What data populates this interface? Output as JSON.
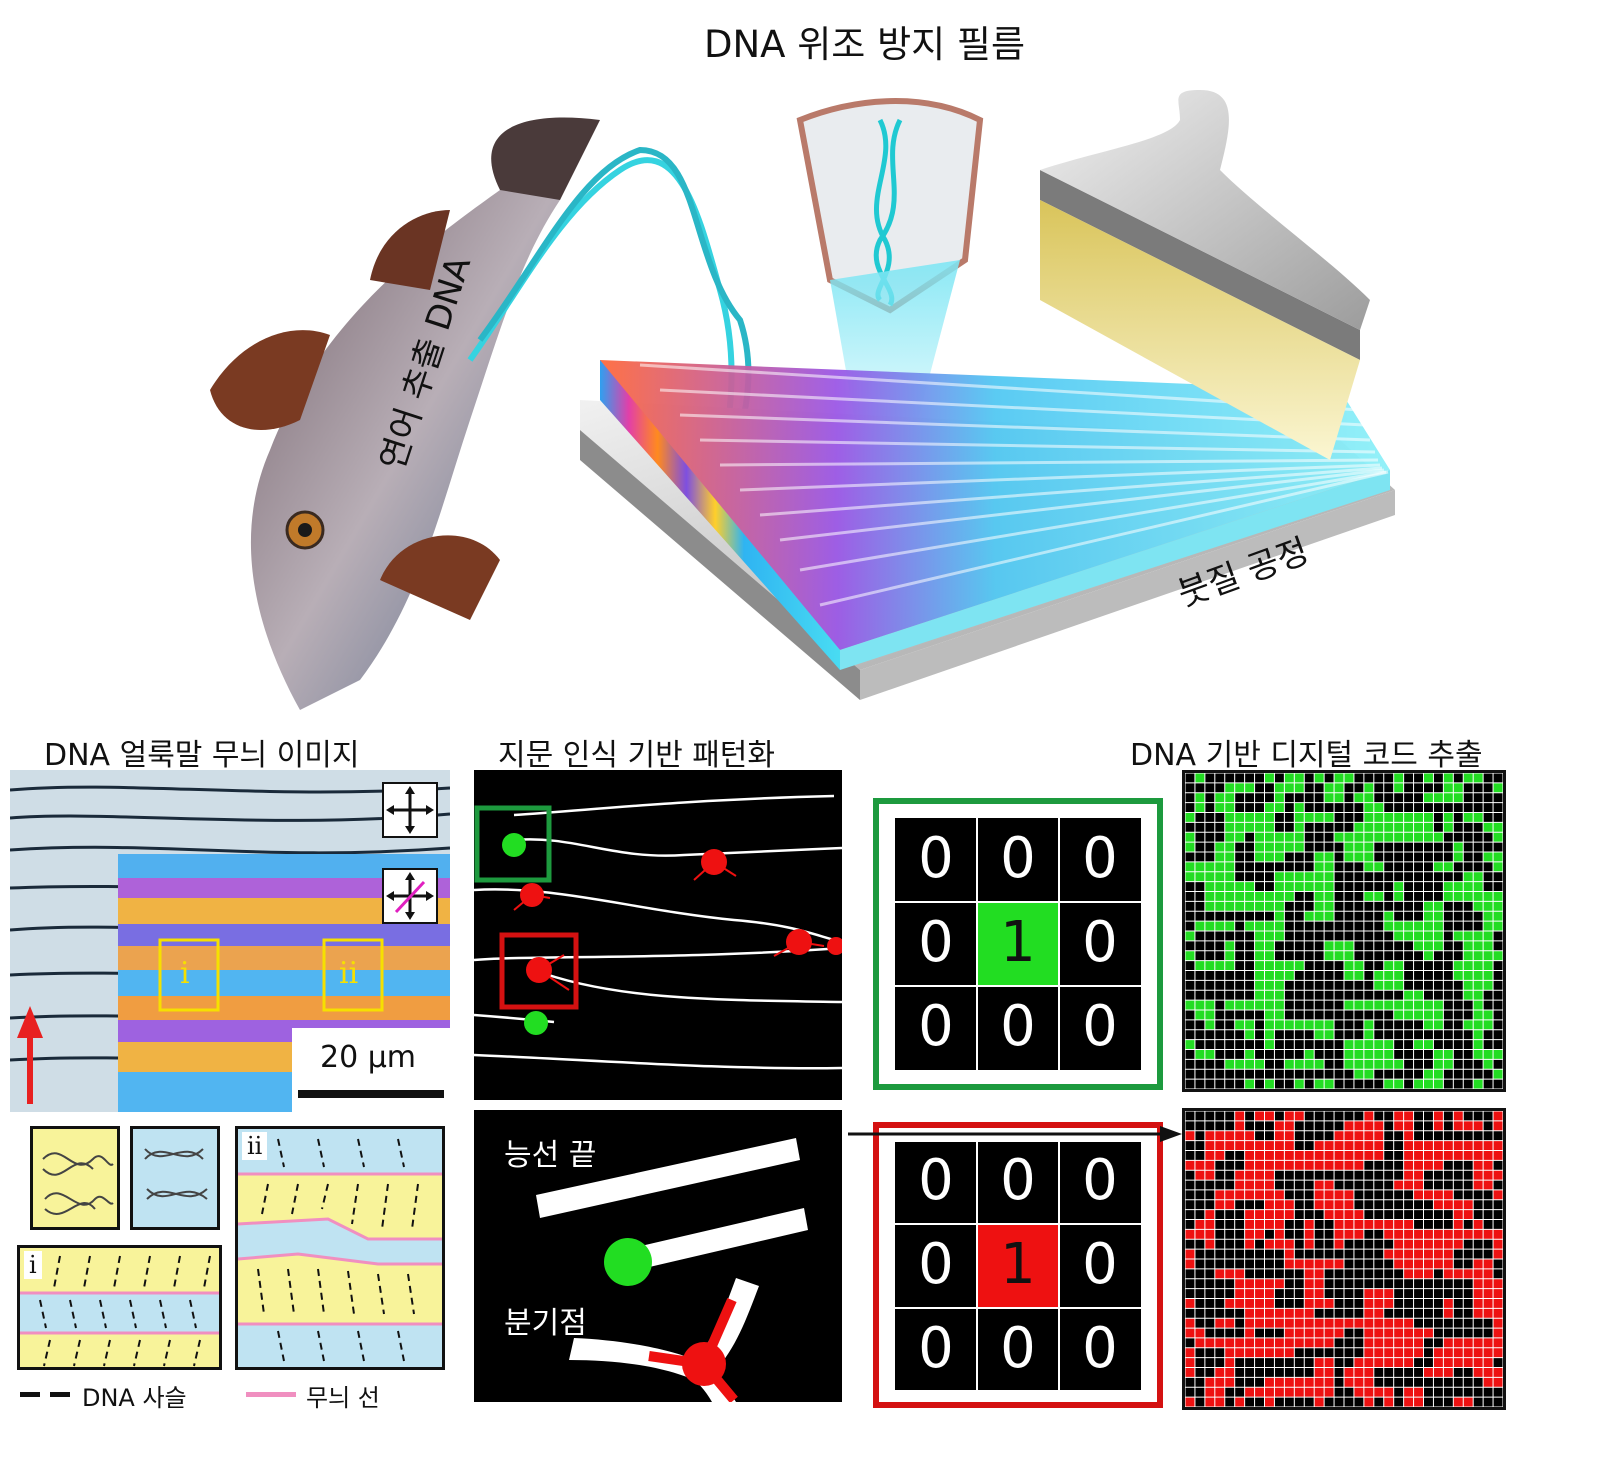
{
  "top": {
    "title": "DNA 위조 방지 필름",
    "fish_label": "연어 추출 DNA",
    "brush_label": "붓질 공정"
  },
  "panel_a": {
    "title": "DNA 얼룩말 무늬 이미지",
    "region_i": "i",
    "region_ii": "ii",
    "scalebar": "20 μm",
    "legend_chain": "DNA 사슬",
    "legend_line": "무늬 선",
    "inset_i": "i",
    "inset_ii": "ii"
  },
  "panel_b": {
    "title": "지문 인식 기반 패턴화",
    "ridge_end": "능선 끝",
    "bifurcation": "분기점"
  },
  "panel_c": {
    "title": "DNA 기반 디지털 코드 추출",
    "green_matrix": [
      "0",
      "0",
      "0",
      "0",
      "1",
      "0",
      "0",
      "0",
      "0"
    ],
    "red_matrix": [
      "0",
      "0",
      "0",
      "0",
      "1",
      "0",
      "0",
      "0",
      "0"
    ]
  },
  "colors": {
    "green": "#22dd22",
    "red": "#ee1111",
    "cyan": "#3fd8e8",
    "yellow_band": "#f8f39a",
    "blue_band": "#bfe3f2",
    "pink_line": "#f08fc0"
  }
}
